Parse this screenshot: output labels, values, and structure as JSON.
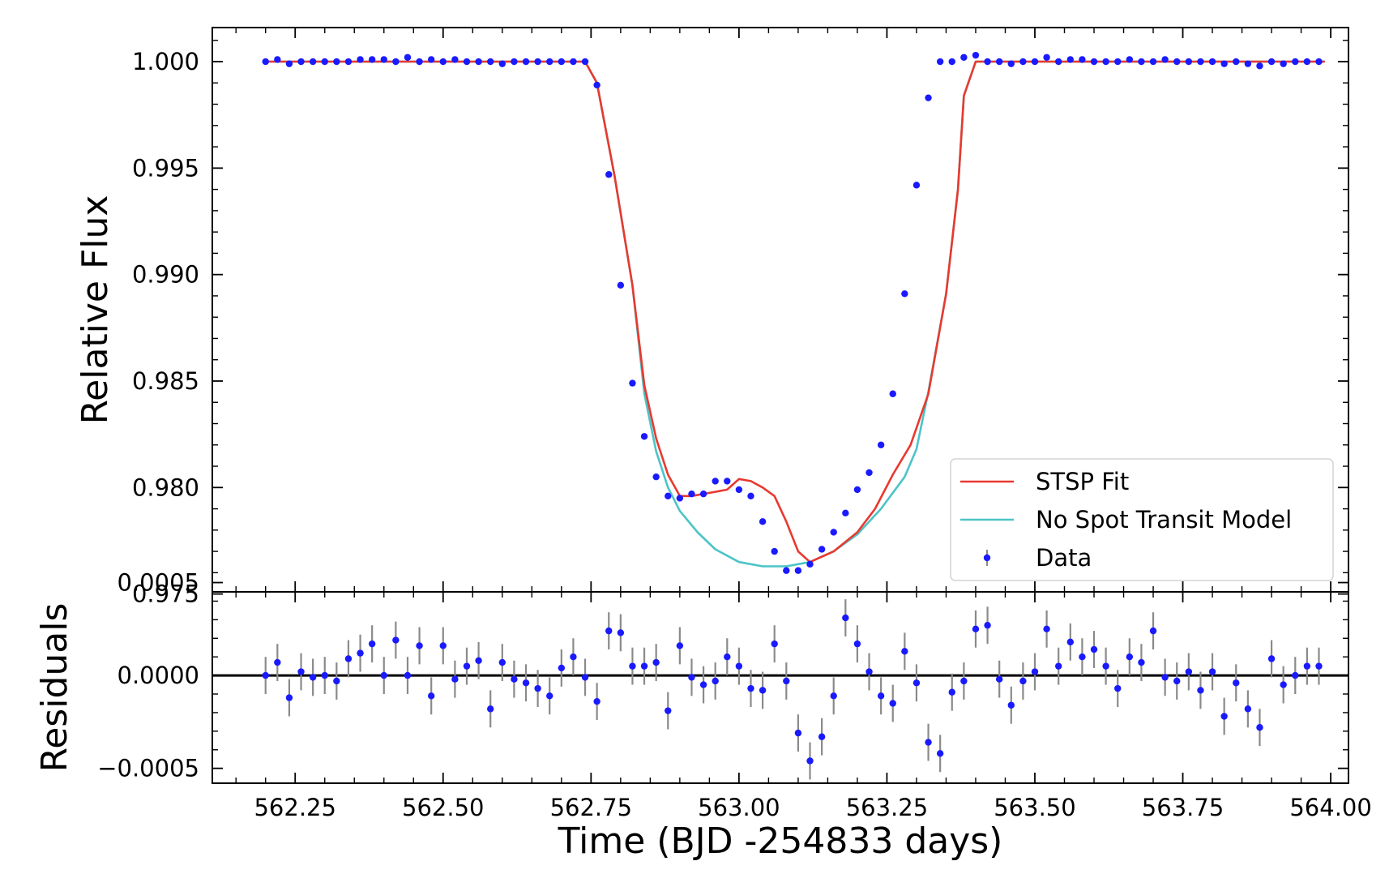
{
  "chart_data": {
    "type": "scatter",
    "title": "",
    "xlabel": "Time (BJD -254833 days)",
    "xlim": [
      562.11,
      564.03
    ],
    "xticks": [
      562.25,
      562.5,
      562.75,
      563.0,
      563.25,
      563.5,
      563.75,
      564.0
    ],
    "xtick_labels": [
      "562.25",
      "562.50",
      "562.75",
      "563.00",
      "563.25",
      "563.50",
      "563.75",
      "564.00"
    ],
    "legend_location": "lower-right",
    "panels": [
      {
        "name": "main",
        "ylabel": "Relative Flux",
        "ylim": [
          0.9751,
          1.0016
        ],
        "yticks": [
          0.975,
          0.98,
          0.985,
          0.99,
          0.995,
          1.0
        ],
        "ytick_labels": [
          "0.975",
          "0.980",
          "0.985",
          "0.990",
          "0.995",
          "1.000"
        ],
        "series": [
          {
            "name": "STSP Fit",
            "kind": "line",
            "color": "#e8392f",
            "x": [
              562.2,
              562.74,
              562.76,
              562.79,
              562.82,
              562.84,
              562.86,
              562.88,
              562.9,
              562.92,
              562.94,
              562.96,
              562.98,
              563.0,
              563.02,
              563.04,
              563.06,
              563.08,
              563.1,
              563.12,
              563.16,
              563.2,
              563.23,
              563.26,
              563.29,
              563.32,
              563.35,
              563.37,
              563.38,
              563.4,
              563.99
            ],
            "y": [
              1.0,
              1.0,
              0.999,
              0.9946,
              0.9895,
              0.9848,
              0.9823,
              0.9806,
              0.9796,
              0.9796,
              0.9797,
              0.9798,
              0.9799,
              0.9804,
              0.9803,
              0.98,
              0.9796,
              0.9784,
              0.977,
              0.9765,
              0.977,
              0.9779,
              0.979,
              0.9806,
              0.982,
              0.9844,
              0.9891,
              0.994,
              0.9984,
              1.0,
              1.0
            ]
          },
          {
            "name": "No Spot Transit Model",
            "kind": "line",
            "color": "#4cc4c7",
            "x": [
              562.2,
              562.74,
              562.76,
              562.79,
              562.82,
              562.84,
              562.86,
              562.88,
              562.9,
              562.93,
              562.96,
              563.0,
              563.04,
              563.08,
              563.12,
              563.16,
              563.2,
              563.24,
              563.28,
              563.3,
              563.32,
              563.35,
              563.37,
              563.38,
              563.4,
              563.99
            ],
            "y": [
              1.0,
              1.0,
              0.999,
              0.9946,
              0.9895,
              0.9844,
              0.9817,
              0.98,
              0.9789,
              0.9779,
              0.9771,
              0.9765,
              0.9763,
              0.9763,
              0.9765,
              0.977,
              0.9778,
              0.979,
              0.9805,
              0.9818,
              0.9845,
              0.9891,
              0.994,
              0.9984,
              1.0,
              1.0
            ]
          },
          {
            "name": "Data",
            "kind": "points",
            "color": "#1a1aff",
            "x": [
              562.2,
              562.22,
              562.24,
              562.26,
              562.28,
              562.3,
              562.32,
              562.34,
              562.36,
              562.38,
              562.4,
              562.42,
              562.44,
              562.46,
              562.48,
              562.5,
              562.52,
              562.54,
              562.56,
              562.58,
              562.6,
              562.62,
              562.64,
              562.66,
              562.68,
              562.7,
              562.72,
              562.74,
              562.76,
              562.78,
              562.8,
              562.82,
              562.84,
              562.86,
              562.88,
              562.9,
              562.92,
              562.94,
              562.96,
              562.98,
              563.0,
              563.02,
              563.04,
              563.06,
              563.08,
              563.1,
              563.12,
              563.14,
              563.16,
              563.18,
              563.2,
              563.22,
              563.24,
              563.26,
              563.28,
              563.3,
              563.32,
              563.34,
              563.36,
              563.38,
              563.4,
              563.42,
              563.44,
              563.46,
              563.48,
              563.5,
              563.52,
              563.54,
              563.56,
              563.58,
              563.6,
              563.62,
              563.64,
              563.66,
              563.68,
              563.7,
              563.72,
              563.74,
              563.76,
              563.78,
              563.8,
              563.82,
              563.84,
              563.86,
              563.88,
              563.9,
              563.92,
              563.94,
              563.96,
              563.98
            ],
            "y": [
              1.0,
              1.0001,
              0.9999,
              1.0,
              1.0,
              1.0,
              1.0,
              1.0,
              1.0001,
              1.0001,
              1.0001,
              1.0,
              1.0002,
              1.0,
              1.0001,
              1.0,
              1.0001,
              1.0,
              1.0,
              1.0,
              0.9999,
              1.0,
              1.0,
              1.0,
              1.0,
              1.0,
              1.0,
              1.0,
              0.9989,
              0.9947,
              0.9895,
              0.9849,
              0.9824,
              0.9805,
              0.9796,
              0.9795,
              0.9797,
              0.9797,
              0.9803,
              0.9803,
              0.9799,
              0.9796,
              0.9784,
              0.977,
              0.9761,
              0.9761,
              0.9764,
              0.9771,
              0.9779,
              0.9788,
              0.9799,
              0.9807,
              0.982,
              0.9844,
              0.9891,
              0.9942,
              0.9983,
              1.0,
              1.0,
              1.0002,
              1.0003,
              1.0,
              1.0,
              0.9999,
              1.0,
              1.0,
              1.0002,
              1.0,
              1.0001,
              1.0001,
              1.0,
              1.0,
              1.0,
              1.0001,
              1.0,
              1.0,
              1.0001,
              1.0,
              1.0,
              1.0,
              1.0,
              0.9999,
              1.0,
              0.9999,
              0.9998,
              1.0,
              0.9999,
              1.0,
              1.0,
              1.0
            ]
          }
        ]
      },
      {
        "name": "residuals",
        "ylabel": "Residuals",
        "ylim": [
          -0.00058,
          0.00045
        ],
        "yticks": [
          -0.0005,
          0.0,
          0.0005
        ],
        "ytick_labels": [
          "−0.0005",
          "0.0000",
          "0.0005"
        ],
        "zero_line": true,
        "series": [
          {
            "name": "Residuals",
            "kind": "points",
            "color": "#1a1aff",
            "error_color": "#8a8a8a",
            "yerr": 0.0001,
            "x": [
              562.2,
              562.22,
              562.24,
              562.26,
              562.28,
              562.3,
              562.32,
              562.34,
              562.36,
              562.38,
              562.4,
              562.42,
              562.44,
              562.46,
              562.48,
              562.5,
              562.52,
              562.54,
              562.56,
              562.58,
              562.6,
              562.62,
              562.64,
              562.66,
              562.68,
              562.7,
              562.72,
              562.74,
              562.76,
              562.78,
              562.8,
              562.82,
              562.84,
              562.86,
              562.88,
              562.9,
              562.92,
              562.94,
              562.96,
              562.98,
              563.0,
              563.02,
              563.04,
              563.06,
              563.08,
              563.1,
              563.12,
              563.14,
              563.16,
              563.18,
              563.2,
              563.22,
              563.24,
              563.26,
              563.28,
              563.3,
              563.32,
              563.34,
              563.36,
              563.38,
              563.4,
              563.42,
              563.44,
              563.46,
              563.48,
              563.5,
              563.52,
              563.54,
              563.56,
              563.58,
              563.6,
              563.62,
              563.64,
              563.66,
              563.68,
              563.7,
              563.72,
              563.74,
              563.76,
              563.78,
              563.8,
              563.82,
              563.84,
              563.86,
              563.88,
              563.9,
              563.92,
              563.94,
              563.96,
              563.98
            ],
            "y": [
              0.0,
              7e-05,
              -0.00012,
              2e-05,
              -1e-05,
              0.0,
              -3e-05,
              9e-05,
              0.00012,
              0.00017,
              0.0,
              0.00019,
              0.0,
              0.00016,
              -0.00011,
              0.00016,
              -2e-05,
              5e-05,
              8e-05,
              -0.00018,
              7e-05,
              -2e-05,
              -4e-05,
              -7e-05,
              -0.00011,
              4e-05,
              0.0001,
              -1e-05,
              -0.00014,
              0.00024,
              0.00023,
              5e-05,
              5e-05,
              7e-05,
              -0.00019,
              0.00016,
              -1e-05,
              -5e-05,
              -3e-05,
              0.0001,
              5e-05,
              -7e-05,
              -8e-05,
              0.00017,
              -3e-05,
              -0.00031,
              -0.00046,
              -0.00033,
              -0.00011,
              0.00031,
              0.00017,
              2e-05,
              -0.00011,
              -0.00015,
              0.00013,
              -4e-05,
              -0.00036,
              -0.00042,
              -9e-05,
              -3e-05,
              0.00025,
              0.00027,
              -2e-05,
              -0.00016,
              -3e-05,
              2e-05,
              0.00025,
              5e-05,
              0.00018,
              0.0001,
              0.00014,
              5e-05,
              -7e-05,
              0.0001,
              7e-05,
              0.00024,
              -1e-05,
              -3e-05,
              2e-05,
              -8e-05,
              2e-05,
              -0.00022,
              -4e-05,
              -0.00018,
              -0.00028,
              9e-05,
              -5e-05,
              0.0,
              5e-05,
              5e-05
            ]
          }
        ]
      }
    ]
  }
}
